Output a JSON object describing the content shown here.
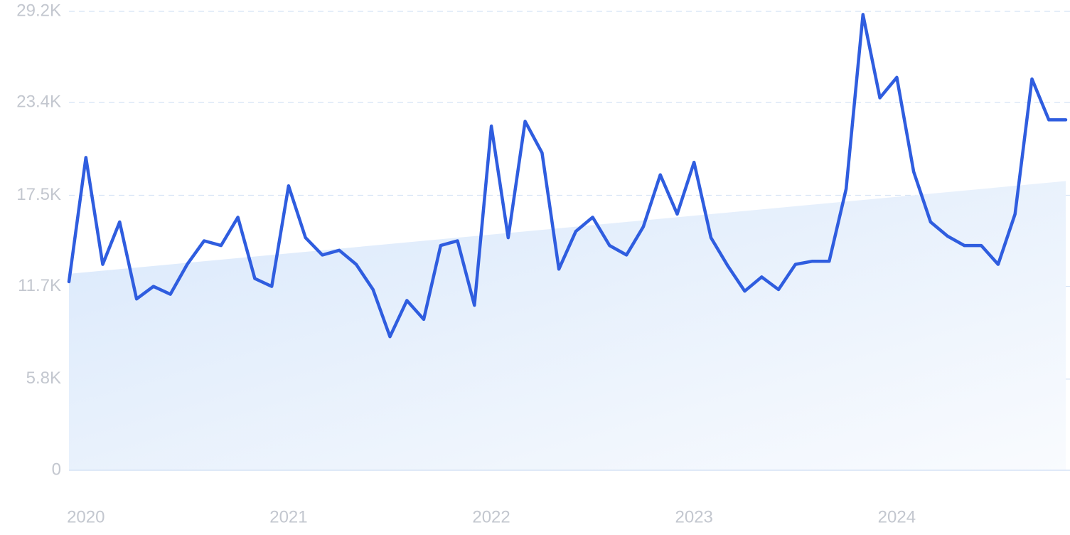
{
  "chart_data": {
    "type": "line",
    "title": "",
    "xlabel": "",
    "ylabel": "",
    "ylim": [
      0,
      29200
    ],
    "y_ticks": [
      {
        "value": 0,
        "label": "0"
      },
      {
        "value": 5800,
        "label": "5.8K"
      },
      {
        "value": 11700,
        "label": "11.7K"
      },
      {
        "value": 17500,
        "label": "17.5K"
      },
      {
        "value": 23400,
        "label": "23.4K"
      },
      {
        "value": 29200,
        "label": "29.2K"
      }
    ],
    "x_ticks": [
      {
        "value": "2020-01",
        "label": "2020"
      },
      {
        "value": "2021-01",
        "label": "2021"
      },
      {
        "value": "2022-01",
        "label": "2022"
      },
      {
        "value": "2023-01",
        "label": "2023"
      },
      {
        "value": "2024-01",
        "label": "2024"
      }
    ],
    "x_start": "2019-12",
    "x_end": "2024-11",
    "grid": true,
    "legend": "none",
    "colors": {
      "line": "#2f5ddf",
      "trend_fill_top": "#d9e8fb",
      "trend_fill_bottom": "#f9fbfe",
      "grid": "#d5e3f5",
      "tick_text": "#c3c7cf"
    },
    "trend": {
      "x": [
        "2019-12",
        "2024-11"
      ],
      "values": [
        12500,
        18400
      ]
    },
    "series": [
      {
        "x": [
          "2019-12",
          "2020-01",
          "2020-02",
          "2020-03",
          "2020-04",
          "2020-05",
          "2020-06",
          "2020-07",
          "2020-08",
          "2020-09",
          "2020-10",
          "2020-11",
          "2020-12",
          "2021-01",
          "2021-02",
          "2021-03",
          "2021-04",
          "2021-05",
          "2021-06",
          "2021-07",
          "2021-08",
          "2021-09",
          "2021-10",
          "2021-11",
          "2021-12",
          "2022-01",
          "2022-02",
          "2022-03",
          "2022-04",
          "2022-05",
          "2022-06",
          "2022-07",
          "2022-08",
          "2022-09",
          "2022-10",
          "2022-11",
          "2022-12",
          "2023-01",
          "2023-02",
          "2023-03",
          "2023-04",
          "2023-05",
          "2023-06",
          "2023-07",
          "2023-08",
          "2023-09",
          "2023-10",
          "2023-11",
          "2023-12",
          "2024-01",
          "2024-02",
          "2024-03",
          "2024-04",
          "2024-05",
          "2024-06",
          "2024-07",
          "2024-08",
          "2024-09",
          "2024-10",
          "2024-11"
        ],
        "values": [
          12000,
          19900,
          13100,
          15800,
          10900,
          11700,
          11200,
          13100,
          14600,
          14300,
          16100,
          12200,
          11700,
          18100,
          14800,
          13700,
          14000,
          13100,
          11500,
          8500,
          10800,
          9600,
          14300,
          14600,
          10500,
          21900,
          14800,
          22200,
          20200,
          12800,
          15200,
          16100,
          14300,
          13700,
          15500,
          18800,
          16300,
          19600,
          14800,
          13000,
          11400,
          12300,
          11500,
          13100,
          13300,
          13300,
          17900,
          29000,
          23700,
          25000,
          19000,
          15800,
          14900,
          14300,
          14300,
          13100,
          16300,
          24900,
          22300,
          22300
        ]
      }
    ]
  }
}
